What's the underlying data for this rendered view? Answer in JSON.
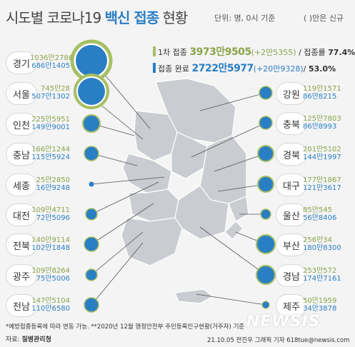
{
  "header": {
    "title_pre": "시도별 코로나19 ",
    "title_bold": "백신 접종",
    "title_post": " 현황",
    "unit": "단위: 명, 0시 기준",
    "new_note": "( )안은 신규"
  },
  "stats": {
    "first": {
      "label": "1차 접종",
      "value": "3973만9505",
      "inc": "(+2만5355)",
      "rate_label": "/ 접종률",
      "rate": "77.4%"
    },
    "complete": {
      "label": "접종 완료",
      "value": "2722만5977",
      "inc": "(+20만9328)",
      "rate_label": "/",
      "rate": "53.0%"
    }
  },
  "regions_left": [
    {
      "name": "경기",
      "first": "1036만2786",
      "complete": "686만1405"
    },
    {
      "name": "서울",
      "first": "745만28",
      "complete": "507만1302"
    },
    {
      "name": "인천",
      "first": "225만5951",
      "complete": "149만9001"
    },
    {
      "name": "충남",
      "first": "166만1244",
      "complete": "115만5924"
    },
    {
      "name": "세종",
      "first": "25만2850",
      "complete": "16만9248"
    },
    {
      "name": "대전",
      "first": "109만4711",
      "complete": "72만5096"
    },
    {
      "name": "전북",
      "first": "140만9114",
      "complete": "102만1848"
    },
    {
      "name": "광주",
      "first": "109만8264",
      "complete": "75만5006"
    },
    {
      "name": "전남",
      "first": "147만5104",
      "complete": "110만6580"
    }
  ],
  "regions_right": [
    {
      "name": "강원",
      "first": "119만1571",
      "complete": "86만8215"
    },
    {
      "name": "충북",
      "first": "125만7803",
      "complete": "86만8993"
    },
    {
      "name": "경북",
      "first": "201만5102",
      "complete": "144만1997"
    },
    {
      "name": "대구",
      "first": "177만1867",
      "complete": "121만3617"
    },
    {
      "name": "울산",
      "first": "85만545",
      "complete": "56만8406"
    },
    {
      "name": "부산",
      "first": "256만34",
      "complete": "180만8300"
    },
    {
      "name": "경남",
      "first": "253만572",
      "complete": "174만7161"
    },
    {
      "name": "제주",
      "first": "50만1959",
      "complete": "34만3878"
    }
  ],
  "footer": {
    "footnote": "*예방접종등록에 따라 변동 가능. **2020년 12월 행정안전부 주민등록인구현황(거주자) 기준",
    "source_label": "자료: ",
    "source": "질병관리청",
    "credit": "21.10.05 전진우 그래픽 기자 618tue@newsis.com",
    "watermark": "NEWSIS"
  },
  "colors": {
    "first": "#a6bf63",
    "complete": "#2a7ec4",
    "map": "#c9ccd0"
  }
}
